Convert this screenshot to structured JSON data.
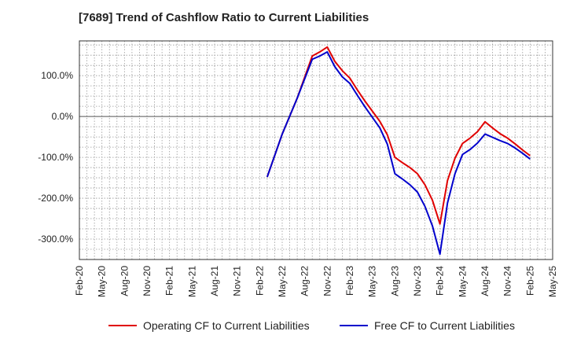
{
  "chart_data": {
    "type": "line",
    "title": "[7689]  Trend of Cashflow Ratio to Current Liabilities",
    "xlabel": "",
    "ylabel": "",
    "x_ticks": [
      "Feb-20",
      "May-20",
      "Aug-20",
      "Nov-20",
      "Feb-21",
      "May-21",
      "Aug-21",
      "Nov-21",
      "Feb-22",
      "May-22",
      "Aug-22",
      "Nov-22",
      "Feb-23",
      "May-23",
      "Aug-23",
      "Nov-23",
      "Feb-24",
      "May-24",
      "Aug-24",
      "Nov-24",
      "Feb-25",
      "May-25"
    ],
    "xlim": [
      "2020-02",
      "2025-05"
    ],
    "y_ticks": [
      -300,
      -200,
      -100,
      0,
      100
    ],
    "y_tick_labels": [
      "-300.0%",
      "-200.0%",
      "-100.0%",
      "0.0%",
      "100.0%"
    ],
    "ylim": [
      -350,
      185
    ],
    "grid": true,
    "legend_position": "bottom",
    "series": [
      {
        "name": "Operating CF to Current Liabilities",
        "color": "#e00000",
        "points": [
          {
            "x": "2022-03",
            "y": -148
          },
          {
            "x": "2022-05",
            "y": -43
          },
          {
            "x": "2022-07",
            "y": 45
          },
          {
            "x": "2022-09",
            "y": 148
          },
          {
            "x": "2022-10",
            "y": 158
          },
          {
            "x": "2022-11",
            "y": 170
          },
          {
            "x": "2022-12",
            "y": 135
          },
          {
            "x": "2023-01",
            "y": 112
          },
          {
            "x": "2023-02",
            "y": 94
          },
          {
            "x": "2023-03",
            "y": 65
          },
          {
            "x": "2023-04",
            "y": 38
          },
          {
            "x": "2023-05",
            "y": 13
          },
          {
            "x": "2023-06",
            "y": -12
          },
          {
            "x": "2023-07",
            "y": -45
          },
          {
            "x": "2023-08",
            "y": -100
          },
          {
            "x": "2023-09",
            "y": -113
          },
          {
            "x": "2023-10",
            "y": -125
          },
          {
            "x": "2023-11",
            "y": -140
          },
          {
            "x": "2023-12",
            "y": -167
          },
          {
            "x": "2024-01",
            "y": -205
          },
          {
            "x": "2024-02",
            "y": -263
          },
          {
            "x": "2024-03",
            "y": -157
          },
          {
            "x": "2024-04",
            "y": -102
          },
          {
            "x": "2024-05",
            "y": -66
          },
          {
            "x": "2024-06",
            "y": -53
          },
          {
            "x": "2024-07",
            "y": -37
          },
          {
            "x": "2024-08",
            "y": -13
          },
          {
            "x": "2024-09",
            "y": -28
          },
          {
            "x": "2024-10",
            "y": -42
          },
          {
            "x": "2024-11",
            "y": -53
          },
          {
            "x": "2024-12",
            "y": -67
          },
          {
            "x": "2025-01",
            "y": -82
          },
          {
            "x": "2025-02",
            "y": -96
          }
        ]
      },
      {
        "name": "Free CF to Current Liabilities",
        "color": "#0000cc",
        "points": [
          {
            "x": "2022-03",
            "y": -148
          },
          {
            "x": "2022-05",
            "y": -43
          },
          {
            "x": "2022-07",
            "y": 45
          },
          {
            "x": "2022-09",
            "y": 140
          },
          {
            "x": "2022-10",
            "y": 148
          },
          {
            "x": "2022-11",
            "y": 158
          },
          {
            "x": "2022-12",
            "y": 122
          },
          {
            "x": "2023-01",
            "y": 97
          },
          {
            "x": "2023-02",
            "y": 81
          },
          {
            "x": "2023-03",
            "y": 52
          },
          {
            "x": "2023-04",
            "y": 24
          },
          {
            "x": "2023-05",
            "y": -2
          },
          {
            "x": "2023-06",
            "y": -28
          },
          {
            "x": "2023-07",
            "y": -68
          },
          {
            "x": "2023-08",
            "y": -140
          },
          {
            "x": "2023-09",
            "y": -153
          },
          {
            "x": "2023-10",
            "y": -167
          },
          {
            "x": "2023-11",
            "y": -185
          },
          {
            "x": "2023-12",
            "y": -220
          },
          {
            "x": "2024-01",
            "y": -268
          },
          {
            "x": "2024-02",
            "y": -337
          },
          {
            "x": "2024-03",
            "y": -212
          },
          {
            "x": "2024-04",
            "y": -140
          },
          {
            "x": "2024-05",
            "y": -93
          },
          {
            "x": "2024-06",
            "y": -81
          },
          {
            "x": "2024-07",
            "y": -65
          },
          {
            "x": "2024-08",
            "y": -43
          },
          {
            "x": "2024-09",
            "y": -51
          },
          {
            "x": "2024-10",
            "y": -59
          },
          {
            "x": "2024-11",
            "y": -66
          },
          {
            "x": "2024-12",
            "y": -77
          },
          {
            "x": "2025-01",
            "y": -90
          },
          {
            "x": "2025-02",
            "y": -104
          }
        ]
      }
    ]
  }
}
